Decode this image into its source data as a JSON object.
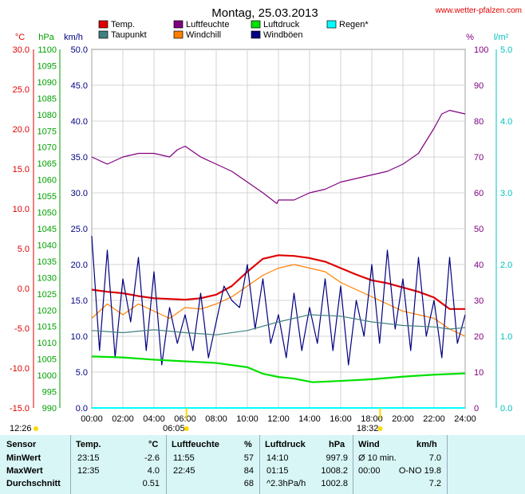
{
  "header": {
    "title": "Montag, 25.03.2013",
    "site": "www.wetter-pfalzen.com"
  },
  "legend": [
    {
      "label": "Temp.",
      "color": "#e00000"
    },
    {
      "label": "Taupunkt",
      "color": "#408080"
    },
    {
      "label": "Luftfeuchte",
      "color": "#800080"
    },
    {
      "label": "Windchill",
      "color": "#ff8000"
    },
    {
      "label": "Luftdruck",
      "color": "#00e000"
    },
    {
      "label": "Windböen",
      "color": "#000080"
    },
    {
      "label": "Regen*",
      "color": "#00ffff"
    }
  ],
  "axes": {
    "temp": {
      "unit": "°C",
      "color": "#e00000",
      "ticks": [
        "30.0",
        "25.0",
        "20.0",
        "15.0",
        "10.0",
        "5.0",
        "0.0",
        "-5.0",
        "-10.0",
        "-15.0"
      ]
    },
    "pressure": {
      "unit": "hPa",
      "color": "#00a000",
      "ticks": [
        "1100",
        "1095",
        "1090",
        "1085",
        "1080",
        "1075",
        "1070",
        "1065",
        "1060",
        "1055",
        "1050",
        "1045",
        "1040",
        "1035",
        "1030",
        "1025",
        "1020",
        "1015",
        "1010",
        "1005",
        "1000",
        "995",
        "990"
      ]
    },
    "wind": {
      "unit": "km/h",
      "color": "#000080",
      "ticks": [
        "50.0",
        "45.0",
        "40.0",
        "35.0",
        "30.0",
        "25.0",
        "20.0",
        "15.0",
        "10.0",
        "5.0",
        "0.0"
      ]
    },
    "humidity": {
      "unit": "%",
      "color": "#800080",
      "ticks": [
        "100",
        "90",
        "80",
        "70",
        "60",
        "50",
        "40",
        "30",
        "20",
        "10",
        "0"
      ]
    },
    "rain": {
      "unit": "l/m²",
      "color": "#00c0c0",
      "ticks": [
        "5.0",
        "4.0",
        "3.0",
        "2.0",
        "1.0",
        "0.0"
      ]
    },
    "time_ticks": [
      "00:00",
      "02:00",
      "04:00",
      "06:00",
      "08:00",
      "10:00",
      "12:00",
      "14:00",
      "16:00",
      "18:00",
      "20:00",
      "22:00",
      "24:00"
    ]
  },
  "markers": {
    "moonrise": "12:26",
    "sunrise": "06:05",
    "sunset": "18:32"
  },
  "stats": {
    "headers": {
      "sensor": "Sensor",
      "temp": "Temp.",
      "temp_unit": "°C",
      "hum": "Luftfeuchte",
      "hum_unit": "%",
      "press": "Luftdruck",
      "press_unit": "hPa",
      "wind": "Wind",
      "wind_unit": "km/h"
    },
    "rows": [
      {
        "label": "MinWert",
        "t_time": "23:15",
        "t_val": "-2.6",
        "h_time": "11:55",
        "h_val": "57",
        "p_time": "14:10",
        "p_val": "997.9",
        "w_time": "Ø 10 min.",
        "w_val": "7.0"
      },
      {
        "label": "MaxWert",
        "t_time": "12:35",
        "t_val": "4.0",
        "h_time": "22:45",
        "h_val": "84",
        "p_time": "01:15",
        "p_val": "1008.2",
        "w_time": "00:00",
        "w_val": "O-NO 19.8"
      },
      {
        "label": "Durchschnitt",
        "t_time": "",
        "t_val": "0.51",
        "h_time": "",
        "h_val": "68",
        "p_time": "^2.3hPa/h",
        "p_val": "1002.8",
        "w_time": "",
        "w_val": "7.2"
      }
    ]
  },
  "chart_data": {
    "type": "line",
    "title": "Montag, 25.03.2013",
    "x_unit": "hours",
    "xlim": [
      0,
      24
    ],
    "series": [
      {
        "name": "Temp.",
        "axis": "wind",
        "color": "#e00000",
        "x": [
          0,
          1,
          2,
          3,
          4,
          5,
          6,
          7,
          8,
          9,
          10,
          11,
          12,
          13,
          14,
          15,
          16,
          17,
          18,
          19,
          20,
          21,
          22,
          23,
          24
        ],
        "y": [
          16.5,
          16.2,
          16.0,
          15.6,
          15.3,
          15.2,
          15.1,
          15.3,
          15.8,
          17.0,
          19.0,
          20.8,
          21.3,
          21.2,
          20.9,
          20.4,
          19.5,
          18.6,
          17.8,
          17.4,
          16.8,
          16.2,
          15.4,
          13.8,
          13.8
        ]
      },
      {
        "name": "Windchill",
        "axis": "wind",
        "color": "#ff8000",
        "x": [
          0,
          1,
          2,
          3,
          4,
          5,
          6,
          7,
          8,
          9,
          10,
          11,
          12,
          13,
          14,
          15,
          16,
          17,
          18,
          19,
          20,
          21,
          22,
          23,
          24
        ],
        "y": [
          12.5,
          14.5,
          13.0,
          14.5,
          13.5,
          12.5,
          14.0,
          13.8,
          14.5,
          15.5,
          17.0,
          18.5,
          19.5,
          20.0,
          19.5,
          19.0,
          17.5,
          16.5,
          15.5,
          14.5,
          13.5,
          13.0,
          12.5,
          11.0,
          10.0
        ]
      },
      {
        "name": "Windböen",
        "axis": "wind",
        "color": "#000080",
        "x": [
          0,
          0.5,
          1,
          1.5,
          2,
          2.5,
          3,
          3.5,
          4,
          4.5,
          5,
          5.5,
          6,
          6.5,
          7,
          7.5,
          8,
          8.5,
          9,
          9.5,
          10,
          10.5,
          11,
          11.5,
          12,
          12.5,
          13,
          13.5,
          14,
          14.5,
          15,
          15.5,
          16,
          16.5,
          17,
          17.5,
          18,
          18.5,
          19,
          19.5,
          20,
          20.5,
          21,
          21.5,
          22,
          22.5,
          23,
          23.5,
          24
        ],
        "y": [
          24,
          8,
          22,
          7,
          18,
          12,
          21,
          8,
          19,
          6,
          14,
          9,
          13,
          8,
          16,
          7,
          12,
          17,
          15,
          14,
          20,
          11,
          18,
          9,
          13,
          7,
          16,
          8,
          14,
          9,
          18,
          8,
          17,
          6,
          15,
          10,
          20,
          9,
          22,
          11,
          18,
          8,
          21,
          10,
          15,
          7,
          21,
          9,
          13
        ]
      },
      {
        "name": "Taupunkt",
        "axis": "wind",
        "color": "#408080",
        "x": [
          0,
          2,
          4,
          6,
          8,
          10,
          12,
          14,
          16,
          18,
          20,
          22,
          23,
          24
        ],
        "y": [
          10.8,
          10.5,
          10.9,
          10.5,
          10.2,
          10.8,
          12.0,
          13.0,
          12.8,
          12.0,
          11.5,
          11.3,
          11.0,
          11.2
        ]
      },
      {
        "name": "Luftfeuchte",
        "axis": "humidity",
        "color": "#800080",
        "x": [
          0,
          1,
          2,
          3,
          4,
          5,
          5.5,
          6,
          7,
          8,
          9,
          10,
          11,
          11.9,
          12,
          13,
          14,
          15,
          16,
          17,
          18,
          19,
          20,
          21,
          22,
          22.5,
          23,
          24
        ],
        "y": [
          70,
          68,
          70,
          71,
          71,
          70,
          72,
          73,
          70,
          68,
          66,
          63,
          60,
          57,
          58,
          58,
          60,
          61,
          63,
          64,
          65,
          66,
          68,
          71,
          78,
          82,
          83,
          82
        ]
      },
      {
        "name": "Luftdruck",
        "axis": "pressure",
        "color": "#00e000",
        "x": [
          0,
          2,
          4,
          6,
          8,
          10,
          11,
          12,
          13,
          14.2,
          16,
          18,
          20,
          22,
          24
        ],
        "y": [
          1005.8,
          1005.5,
          1004.8,
          1004.3,
          1003.8,
          1002.5,
          1000.5,
          999.5,
          999.0,
          997.9,
          998.3,
          998.8,
          999.6,
          1000.2,
          1000.6
        ]
      },
      {
        "name": "Regen*",
        "axis": "rain",
        "color": "#00ffff",
        "x": [
          0,
          24
        ],
        "y": [
          0,
          0
        ]
      }
    ],
    "ylim_wind": [
      0,
      50
    ],
    "ylim_humidity": [
      0,
      100
    ],
    "ylim_pressure": [
      990,
      1100
    ],
    "ylim_temp": [
      -15,
      30
    ],
    "ylim_rain": [
      0,
      5
    ],
    "grid": true,
    "legend": "top"
  }
}
